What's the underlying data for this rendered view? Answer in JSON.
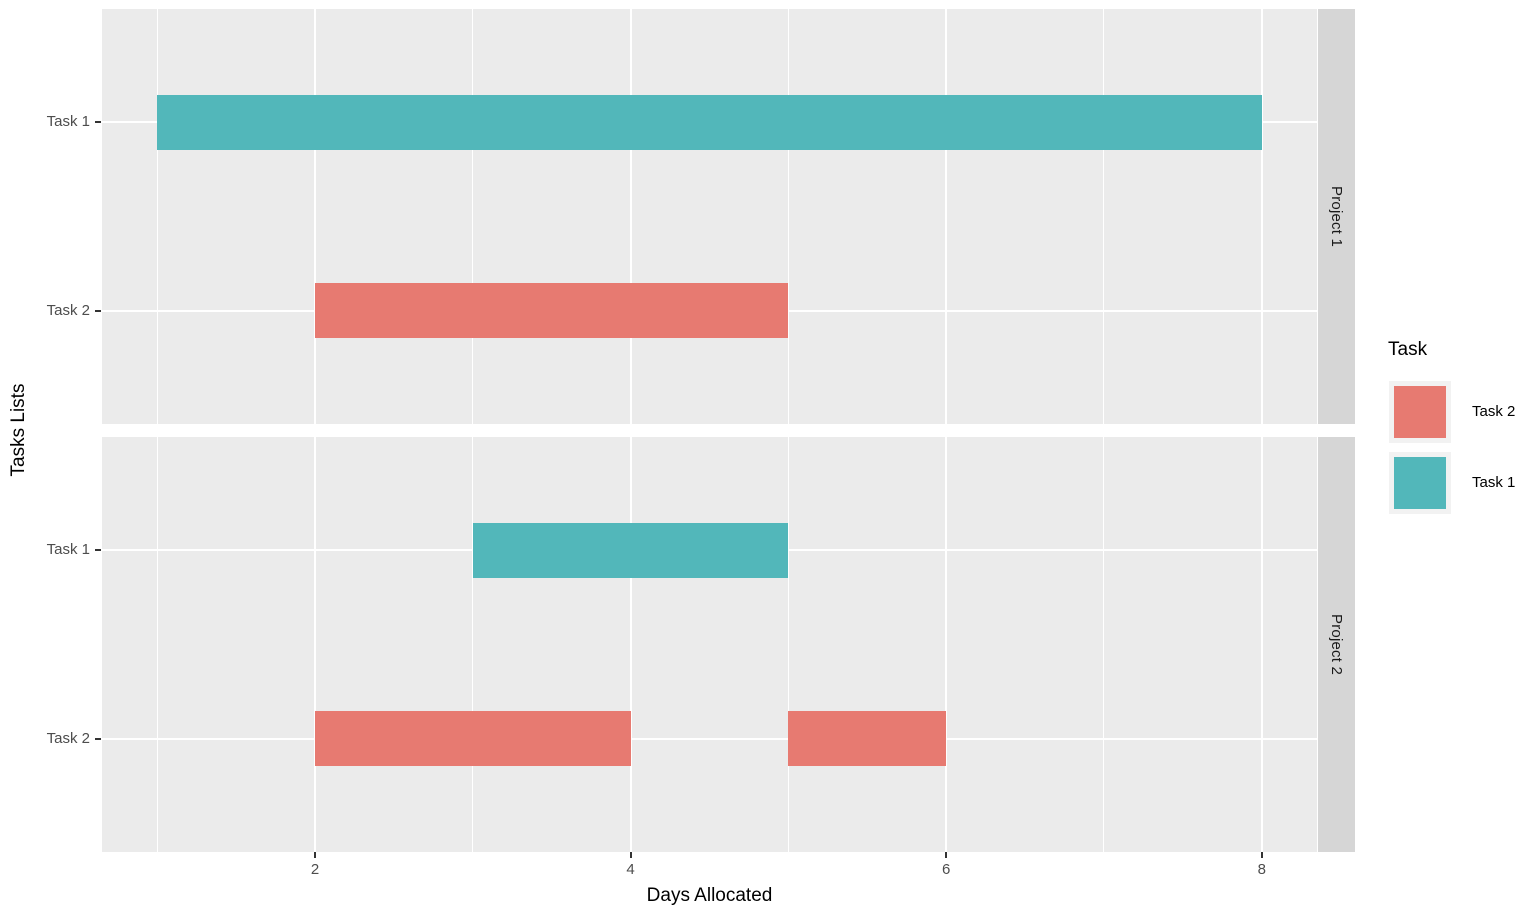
{
  "chart_data": {
    "type": "bar",
    "subtype": "gantt",
    "title": "",
    "xlabel": "Days Allocated",
    "ylabel": "Tasks Lists",
    "xlim": [
      0.65,
      8.35
    ],
    "x_major_ticks": [
      2,
      4,
      6,
      8
    ],
    "x_minor_gridlines": [
      1,
      3,
      5,
      7
    ],
    "grid": "on",
    "legend": {
      "title": "Task",
      "position": "right",
      "entries": [
        {
          "label": "Task 2",
          "color_key": "task2"
        },
        {
          "label": "Task 1",
          "color_key": "task1"
        }
      ]
    },
    "facets": [
      {
        "label": "Project 1",
        "rows": [
          {
            "label": "Task 1",
            "color_key": "task1",
            "segments": [
              [
                1,
                8
              ]
            ]
          },
          {
            "label": "Task 2",
            "color_key": "task2",
            "segments": [
              [
                2,
                5
              ]
            ]
          }
        ]
      },
      {
        "label": "Project 2",
        "rows": [
          {
            "label": "Task 1",
            "color_key": "task1",
            "segments": [
              [
                3,
                5
              ]
            ]
          },
          {
            "label": "Task 2",
            "color_key": "task2",
            "segments": [
              [
                2,
                4
              ],
              [
                5,
                6
              ]
            ]
          }
        ]
      }
    ]
  },
  "colors": {
    "task1": "#52B7BA",
    "task2": "#E77A71",
    "panel_bg": "#EBEBEB",
    "strip_bg": "#D6D6D6",
    "grid": "#FFFFFF",
    "tick": "#333333",
    "tick_label": "#4D4D4D",
    "legend_key_bg": "#F2F2F2"
  }
}
